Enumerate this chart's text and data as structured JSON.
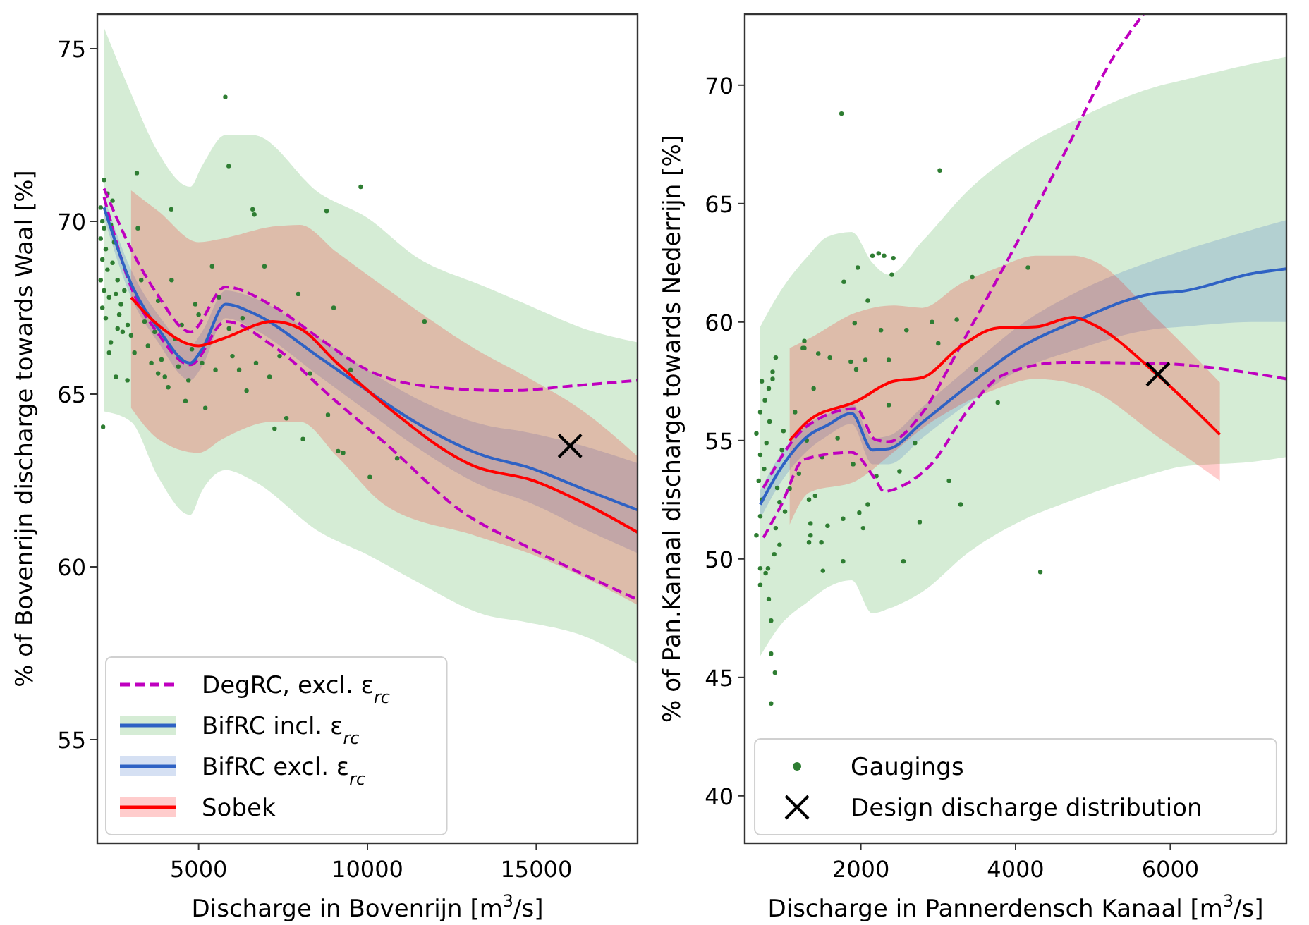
{
  "chart_data": [
    {
      "type": "line",
      "xlabel": "Discharge in Bovenrijn [m$^{3}$/s]",
      "ylabel": "% of Bovenrijn discharge towards Waal [%]",
      "xlim": [
        2000,
        18000
      ],
      "ylim": [
        52,
        76
      ],
      "xticks": [
        5000,
        10000,
        15000
      ],
      "yticks": [
        55,
        60,
        65,
        70,
        75
      ],
      "legend": "bottom left",
      "series": [
        {
          "name": "DegRC, excl. ε$_{rc}$",
          "color": "#bf00bf",
          "line_style": "dashed",
          "x": [
            2200,
            3000,
            3800,
            4750,
            5800,
            7200,
            8600,
            10000,
            12000,
            14200,
            16200,
            18000
          ],
          "values": [
            70.95,
            69.2,
            67.85,
            66.8,
            68.1,
            67.55,
            66.6,
            65.7,
            65.2,
            65.1,
            65.25,
            65.4
          ]
        },
        {
          "color": "#bf00bf",
          "line_style": "dashed",
          "x": [
            2200,
            3000,
            3800,
            4750,
            5800,
            7200,
            9000,
            10500,
            12800,
            14900,
            18000
          ],
          "values": [
            70.7,
            68.1,
            66.75,
            65.85,
            67.1,
            66.4,
            64.85,
            63.6,
            61.6,
            60.5,
            59.05
          ]
        },
        {
          "name": "BifRC incl. ε$_{rc}$",
          "color": "#2ca02c",
          "x": [
            2200,
            3000,
            3800,
            4750,
            5100,
            5800,
            6600,
            8600,
            10000,
            11400,
            13500,
            14700,
            16400,
            18000
          ],
          "values": [
            null,
            null,
            null,
            null,
            null,
            null,
            null,
            null,
            null,
            null,
            null,
            null,
            null,
            null
          ],
          "lower": [
            64.5,
            64.2,
            62.6,
            61.5,
            62.2,
            62.8,
            62.5,
            61.0,
            60.35,
            59.6,
            58.6,
            58.4,
            58.0,
            57.2
          ],
          "upper": [
            75.6,
            73.7,
            72.0,
            71.0,
            71.6,
            72.5,
            72.5,
            70.8,
            70.1,
            69.0,
            68.1,
            67.6,
            66.9,
            66.5
          ]
        },
        {
          "name": "BifRC excl. ε$_{rc}$",
          "color": "#2f62c4",
          "x": [
            2200,
            3000,
            3800,
            4750,
            5100,
            5800,
            6600,
            8600,
            10000,
            11400,
            13500,
            14700,
            16400,
            18000
          ],
          "values": [
            70.4,
            68.2,
            66.9,
            65.9,
            66.3,
            67.6,
            67.35,
            66.05,
            65.1,
            64.2,
            63.2,
            62.9,
            62.25,
            61.65
          ],
          "lower": [
            70.1,
            67.8,
            66.5,
            65.4,
            65.8,
            67.2,
            66.9,
            65.5,
            64.5,
            63.5,
            62.3,
            61.9,
            61.1,
            60.4
          ],
          "upper": [
            70.7,
            68.6,
            67.3,
            66.4,
            66.8,
            68.0,
            67.8,
            66.6,
            65.7,
            64.9,
            64.1,
            63.9,
            63.5,
            63.0
          ]
        },
        {
          "name": "Sobek",
          "color": "#ff0000",
          "x": [
            3000,
            3800,
            5000,
            5700,
            7200,
            8000,
            9100,
            10500,
            13200,
            14900,
            16400,
            18000
          ],
          "values": [
            67.8,
            67.0,
            66.4,
            66.6,
            67.1,
            66.9,
            65.9,
            64.7,
            62.9,
            62.5,
            61.85,
            61.0
          ],
          "lower": [
            64.6,
            63.7,
            63.3,
            63.7,
            64.2,
            64.2,
            63.2,
            61.8,
            60.9,
            60.35,
            59.7,
            58.9
          ],
          "upper": [
            70.9,
            70.3,
            69.4,
            69.5,
            69.85,
            69.9,
            69.1,
            68.1,
            66.3,
            65.4,
            64.5,
            63.2
          ]
        },
        {
          "type": "scatter",
          "marker": "circle",
          "color": "#2e7d32",
          "x": [
            2100,
            2150,
            2200,
            2100,
            2250,
            2150,
            2300,
            2100,
            2200,
            2350,
            2150,
            2250,
            2400,
            2500,
            2450,
            2600,
            2550,
            2700,
            2650,
            2800,
            2900,
            2750,
            2300,
            2200,
            2400,
            2600,
            3000,
            3100,
            2170,
            2890,
            3170,
            2450,
            3300,
            3400,
            3500,
            3600,
            3700,
            3800,
            3900,
            4000,
            4100,
            4190,
            4300,
            4400,
            4500,
            4610,
            4700,
            4800,
            5000,
            5100,
            5400,
            5500,
            5600,
            5790,
            5890,
            5900,
            6000,
            6200,
            6420,
            6600,
            6650,
            6700,
            6950,
            7100,
            7250,
            7400,
            7600,
            7950,
            8090,
            8300,
            8790,
            8830,
            9000,
            9130,
            9280,
            9500,
            9800,
            10070,
            10880,
            11690,
            3200,
            3800,
            4200,
            4900,
            6300,
            5200,
            2350,
            2550
          ],
          "values": [
            70.4,
            70.0,
            69.8,
            69.5,
            69.2,
            68.9,
            68.6,
            68.3,
            68.0,
            67.8,
            67.5,
            67.2,
            69.9,
            69.4,
            68.8,
            68.3,
            67.9,
            67.6,
            67.3,
            68.0,
            67.0,
            66.8,
            70.8,
            71.2,
            66.5,
            66.9,
            66.7,
            66.2,
            64.05,
            65.4,
            71.4,
            70.6,
            68.3,
            67.1,
            66.4,
            65.9,
            66.8,
            65.6,
            66.0,
            65.5,
            65.2,
            70.35,
            66.6,
            65.8,
            67.0,
            64.8,
            65.4,
            66.3,
            67.3,
            65.9,
            68.7,
            65.7,
            67.8,
            73.6,
            71.6,
            66.9,
            66.1,
            65.7,
            65.1,
            70.35,
            70.2,
            65.9,
            68.7,
            65.5,
            64.0,
            66.1,
            64.3,
            67.9,
            63.7,
            65.6,
            70.3,
            64.4,
            67.5,
            63.35,
            63.3,
            65.7,
            71.0,
            62.6,
            63.14,
            67.1,
            69.8,
            67.7,
            68.3,
            67.6,
            67.2,
            64.6,
            66.2,
            65.5
          ]
        },
        {
          "type": "scatter",
          "marker": "cross",
          "color": "#000000",
          "x": [
            16000
          ],
          "values": [
            63.5
          ]
        }
      ]
    },
    {
      "type": "line",
      "xlabel": "Discharge in Pannerdensch Kanaal [m$^{3}$/s]",
      "ylabel": "% of Pan.Kanaal discharge towards Nederrijn [%]",
      "xlim": [
        500,
        7500
      ],
      "ylim": [
        38,
        73
      ],
      "xticks": [
        2000,
        4000,
        6000
      ],
      "yticks": [
        40,
        45,
        50,
        55,
        60,
        65,
        70
      ],
      "legend": "bottom",
      "series": [
        {
          "color": "#bf00bf",
          "line_style": "dashed",
          "x": [
            740,
            960,
            1265,
            1875,
            2180,
            2300,
            2545,
            2910,
            3400,
            3830,
            4620,
            5840,
            7500
          ],
          "values": [
            50.9,
            52.2,
            54.2,
            54.5,
            53.4,
            52.85,
            53.1,
            54.0,
            56.35,
            57.75,
            58.3,
            58.25,
            57.6
          ]
        },
        {
          "color": "#bf00bf",
          "line_style": "dashed",
          "x": [
            740,
            1300,
            1940,
            2180,
            2360,
            2790,
            3280,
            4010,
            4620,
            5230,
            5650
          ],
          "values": [
            53.0,
            55.6,
            56.35,
            55.05,
            54.95,
            56.15,
            58.95,
            63.3,
            67.05,
            71.0,
            73.0
          ]
        },
        {
          "color": "#2ca02c",
          "x": [
            700,
            960,
            1320,
            1570,
            1880,
            2150,
            2360,
            2790,
            3400,
            4070,
            4750,
            5780,
            6150,
            7060,
            7500
          ],
          "values": [
            null,
            null,
            null,
            null,
            null,
            null,
            null,
            null,
            null,
            null,
            null,
            null,
            null,
            null,
            null
          ],
          "lower": [
            45.9,
            47.2,
            48.2,
            48.8,
            49.1,
            47.7,
            47.9,
            48.6,
            50.3,
            51.6,
            52.5,
            53.6,
            53.9,
            54.1,
            54.3
          ],
          "upper": [
            59.8,
            61.3,
            62.8,
            63.6,
            63.8,
            62.5,
            62.0,
            63.4,
            65.6,
            67.3,
            68.5,
            69.9,
            70.2,
            70.9,
            71.2
          ]
        },
        {
          "color": "#2f62c4",
          "x": [
            700,
            960,
            1320,
            1570,
            1880,
            2150,
            2360,
            2790,
            3400,
            4070,
            4750,
            5780,
            6150,
            7060,
            7500
          ],
          "values": [
            52.3,
            53.8,
            55.2,
            55.65,
            56.15,
            54.6,
            54.65,
            55.75,
            57.35,
            58.95,
            60.0,
            61.2,
            61.3,
            62.05,
            62.25
          ],
          "lower": [
            51.7,
            53.2,
            54.6,
            55.2,
            55.7,
            54.0,
            54.0,
            55.1,
            56.6,
            58.0,
            58.8,
            59.7,
            59.8,
            60.0,
            60.0
          ],
          "upper": [
            52.9,
            54.4,
            55.7,
            56.1,
            56.6,
            55.1,
            55.2,
            56.4,
            58.1,
            59.9,
            61.2,
            62.6,
            63.0,
            63.9,
            64.3
          ]
        },
        {
          "color": "#ff0000",
          "x": [
            1080,
            1330,
            1940,
            2420,
            2790,
            3280,
            3770,
            4260,
            4750,
            5000,
            5840,
            6640
          ],
          "values": [
            55.0,
            55.85,
            56.65,
            57.5,
            57.65,
            58.95,
            59.75,
            59.8,
            60.2,
            59.9,
            57.75,
            55.25
          ],
          "lower": [
            51.45,
            52.8,
            53.3,
            54.5,
            55.5,
            56.5,
            57.2,
            57.6,
            57.4,
            57.1,
            55.15,
            53.3
          ],
          "upper": [
            58.9,
            59.3,
            60.4,
            60.7,
            60.6,
            61.6,
            62.3,
            62.8,
            62.8,
            62.6,
            60.1,
            57.45
          ]
        },
        {
          "name": "Gaugings",
          "type": "scatter",
          "marker": "circle",
          "color": "#2e7d32",
          "x": [
            700,
            770,
            810,
            840,
            840,
            890,
            840,
            700,
            800,
            650,
            700,
            720,
            680,
            750,
            700,
            780,
            650,
            820,
            700,
            760,
            810,
            860,
            860,
            720,
            900,
            920,
            950,
            980,
            1000,
            880,
            900,
            950,
            1020,
            1080,
            1270,
            1270,
            1250,
            1390,
            1410,
            1330,
            1330,
            1490,
            1350,
            1350,
            1510,
            1570,
            1770,
            1770,
            1980,
            2030,
            2090,
            2760,
            2550,
            3140,
            3290,
            4320,
            1750,
            3020,
            2150,
            2230,
            2300,
            2420,
            1960,
            1780,
            2400,
            2090,
            3440,
            4160,
            1920,
            2260,
            2590,
            2920,
            3000,
            3240,
            1450,
            1600,
            1870,
            2060,
            2360,
            1940,
            2360,
            3490,
            3770,
            1150,
            1300,
            1500,
            1700,
            1900,
            2200,
            2500,
            2700,
            1200
          ],
          "values": [
            48.9,
            49.4,
            48.3,
            47.4,
            46.0,
            45.2,
            43.9,
            49.6,
            49.6,
            51.0,
            51.8,
            52.5,
            53.3,
            53.8,
            54.4,
            54.9,
            55.3,
            55.8,
            56.2,
            56.7,
            57.2,
            57.9,
            57.6,
            57.5,
            58.5,
            53.0,
            52.4,
            54.6,
            55.4,
            50.2,
            51.3,
            50.6,
            52.0,
            52.97,
            59.2,
            58.9,
            58.9,
            57.2,
            52.67,
            52.5,
            50.7,
            50.7,
            51.0,
            51.5,
            49.5,
            51.4,
            49.9,
            51.7,
            51.95,
            51.3,
            52.3,
            51.56,
            49.9,
            53.3,
            52.3,
            49.45,
            68.8,
            66.4,
            62.8,
            62.9,
            62.8,
            62.7,
            62.3,
            61.7,
            62.0,
            60.9,
            61.9,
            62.3,
            59.96,
            59.66,
            59.66,
            60.0,
            59.1,
            60.1,
            58.67,
            58.5,
            58.33,
            58.4,
            58.4,
            58.0,
            56.5,
            58.0,
            56.6,
            56.2,
            55.0,
            54.3,
            55.1,
            54.0,
            53.5,
            53.7,
            54.9,
            53.6
          ]
        },
        {
          "name": "Design discharge distribution",
          "type": "scatter",
          "marker": "cross",
          "color": "#000000",
          "x": [
            5840
          ],
          "values": [
            57.8
          ]
        }
      ]
    }
  ]
}
